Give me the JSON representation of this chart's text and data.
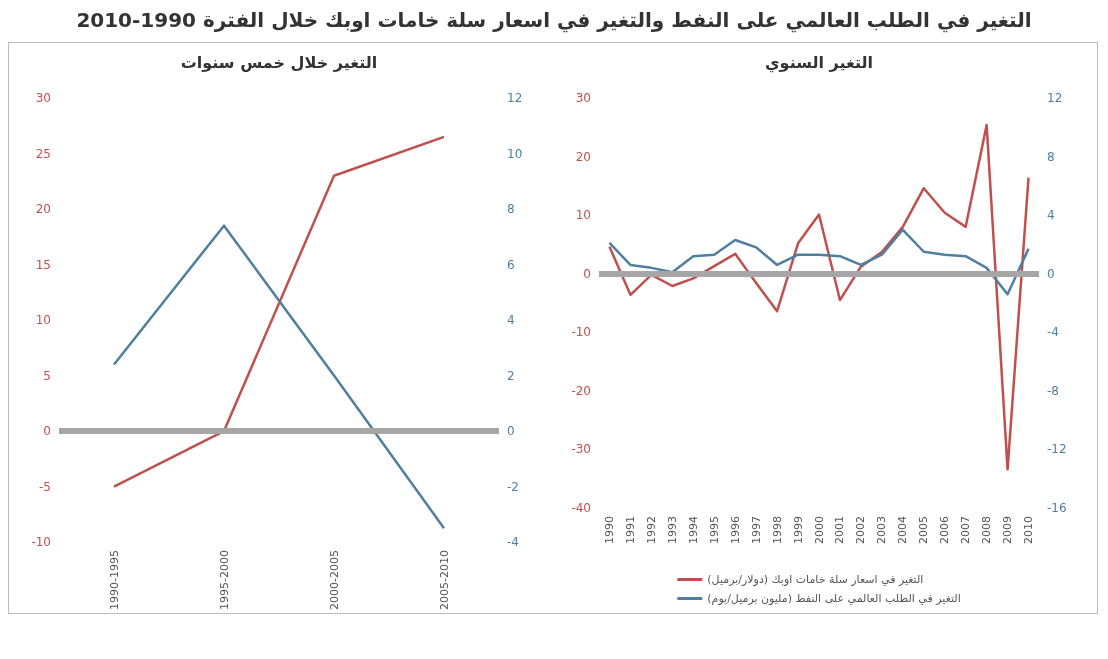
{
  "chart_data": [
    {
      "type": "line",
      "title": "التغير خلال خمس سنوات",
      "annotations": [
        "التغير في الطلب العالمي على النفط والتغير في اسعار سلة خامات اوبك خلال الفترة 1990-2010"
      ],
      "categories": [
        "1990-1995",
        "1995-2000",
        "2000-2005",
        "2005-2010"
      ],
      "series": [
        {
          "color": "#c0504d",
          "values": [
            -5,
            0,
            23,
            26.5
          ]
        },
        {
          "color": "#4f7f9f",
          "axis": "y2",
          "values": [
            2.4,
            7.4,
            2,
            -3.5
          ]
        }
      ],
      "ref_lines": [
        {
          "axis": "y",
          "value": 0,
          "color": "#a6a6a6"
        }
      ],
      "ylim": [
        -10,
        30
      ],
      "yticks": [
        -10,
        -5,
        0,
        5,
        10,
        15,
        20,
        25,
        30
      ],
      "y2lim": [
        -4,
        12
      ],
      "y2ticks": [
        -4,
        -2,
        0,
        2,
        4,
        6,
        8,
        10,
        12
      ],
      "grid": false,
      "legend": false,
      "marker": "none"
    },
    {
      "type": "line",
      "title": "التغير السنوي",
      "categories": [
        "1990",
        "1991",
        "1992",
        "1993",
        "1994",
        "1995",
        "1996",
        "1997",
        "1998",
        "1999",
        "2000",
        "2001",
        "2002",
        "2003",
        "2004",
        "2005",
        "2006",
        "2007",
        "2008",
        "2009",
        "2010"
      ],
      "series": [
        {
          "name": "التغير في اسعار سلة خامات اوبك (دولار/برميل)",
          "color": "#c0504d",
          "values": [
            4.6,
            -3.6,
            -0.2,
            -2.1,
            -0.8,
            1.3,
            3.4,
            -1.6,
            -6.4,
            5.2,
            10.1,
            -4.5,
            1.2,
            3.7,
            8,
            14.6,
            10.4,
            8,
            25.4,
            -33.4,
            16.4
          ]
        },
        {
          "name": "التغير في الطلب العالمي على النفط (مليون برميل/يوم)",
          "color": "#4f7f9f",
          "axis": "y2",
          "values": [
            2.1,
            0.6,
            0.4,
            0.1,
            1.2,
            1.3,
            2.3,
            1.8,
            0.6,
            1.3,
            1.3,
            1.2,
            0.6,
            1.3,
            3,
            1.5,
            1.3,
            1.2,
            0.4,
            -1.4,
            1.7
          ]
        }
      ],
      "ref_lines": [
        {
          "axis": "y",
          "value": 0,
          "color": "#a6a6a6"
        }
      ],
      "ylim": [
        -40,
        30
      ],
      "yticks": [
        -40,
        -30,
        -20,
        -10,
        0,
        10,
        20,
        30
      ],
      "y2lim": [
        -16,
        12
      ],
      "y2ticks": [
        -16,
        -12,
        -8,
        -4,
        0,
        4,
        8,
        12
      ],
      "grid": false,
      "legend": "bottom",
      "marker": "none"
    }
  ]
}
